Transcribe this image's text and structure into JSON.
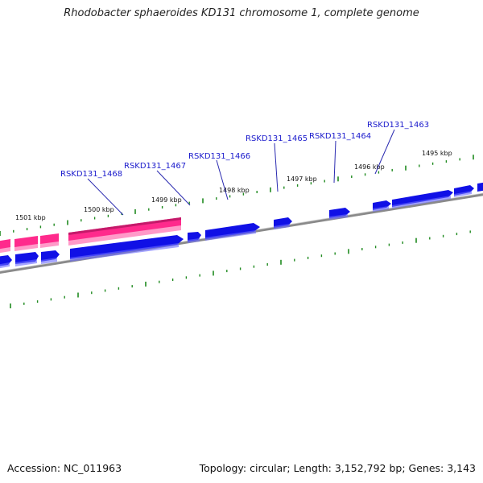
{
  "title": "Rhodobacter sphaeroides KD131 chromosome 1, complete genome",
  "footer": {
    "accession": "Accession: NC_011963",
    "summary": "Topology: circular; Length: 3,152,792 bp; Genes: 3,143"
  },
  "colors": {
    "forward_gene": "#1010e6",
    "rna_feature": "#ff2a8c",
    "backbone": "#8a8a8a",
    "tick": "#1f8a1f",
    "leader_line": "#2a2ab0"
  },
  "scale_labels": [
    {
      "kbp": 1495,
      "text": "1495 kbp"
    },
    {
      "kbp": 1496,
      "text": "1496 kbp"
    },
    {
      "kbp": 1497,
      "text": "1497 kbp"
    },
    {
      "kbp": 1498,
      "text": "1498 kbp"
    },
    {
      "kbp": 1499,
      "text": "1499 kbp"
    },
    {
      "kbp": 1500,
      "text": "1500 kbp"
    },
    {
      "kbp": 1501,
      "text": "1501 kbp"
    }
  ],
  "gene_labels": [
    {
      "name": "RSKD131_1463"
    },
    {
      "name": "RSKD131_1464"
    },
    {
      "name": "RSKD131_1465"
    },
    {
      "name": "RSKD131_1466"
    },
    {
      "name": "RSKD131_1467"
    },
    {
      "name": "RSKD131_1468"
    }
  ]
}
